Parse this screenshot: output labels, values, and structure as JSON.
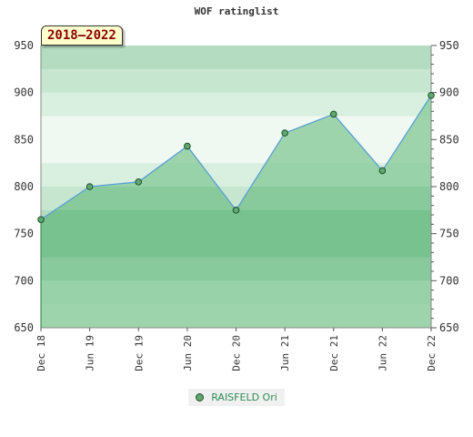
{
  "chart_data": {
    "type": "area",
    "title": "WOF ratinglist",
    "range_label": "2018–2022",
    "x_ticks": [
      "Dec 18",
      "Jun 19",
      "Dec 19",
      "Jun 20",
      "Dec 20",
      "Jun 21",
      "Dec 21",
      "Jun 22",
      "Dec 22"
    ],
    "series": [
      {
        "name": "RAISFELD Ori",
        "values": [
          765,
          800,
          805,
          843,
          775,
          857,
          877,
          817,
          897
        ]
      }
    ],
    "ylim": [
      650,
      950
    ],
    "y_ticks": [
      650,
      700,
      750,
      800,
      850,
      900,
      950
    ],
    "y_axis_sides": [
      "left",
      "right"
    ],
    "legend_position": "bottom-center",
    "colors": {
      "line": "#5a9fd4",
      "marker": "#5fa86f",
      "area": "#3aa55a"
    }
  }
}
